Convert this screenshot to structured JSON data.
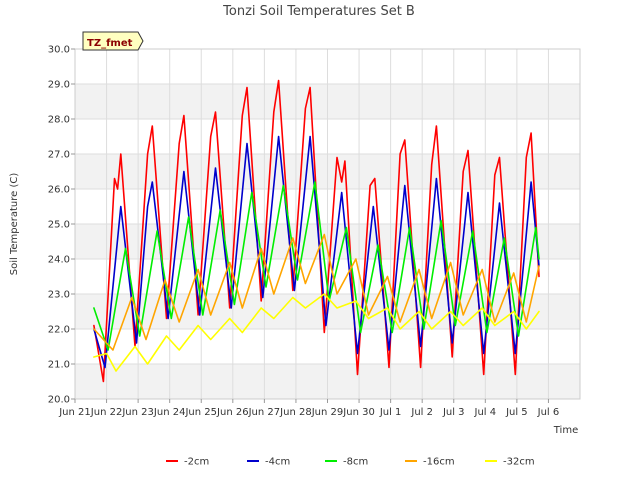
{
  "chart_data": {
    "type": "line",
    "title": "Tonzi Soil Temperatures Set B",
    "xlabel": "Time",
    "ylabel": "Soil Temperature (C)",
    "badge": "TZ_fmet",
    "x_ticks": [
      "Jun 21",
      "Jun 22",
      "Jun 23",
      "Jun 24",
      "Jun 25",
      "Jun 26",
      "Jun 27",
      "Jun 28",
      "Jun 29",
      "Jun 30",
      "Jul 1",
      "Jul 2",
      "Jul 3",
      "Jul 4",
      "Jul 5",
      "Jul 6"
    ],
    "y_ticks": [
      "20.0",
      "21.0",
      "22.0",
      "23.0",
      "24.0",
      "25.0",
      "26.0",
      "27.0",
      "28.0",
      "29.0",
      "30.0"
    ],
    "ylim": [
      20,
      30
    ],
    "xlim_days": [
      0,
      16
    ],
    "grid": true,
    "legend_position": "bottom",
    "series": [
      {
        "name": "-2cm",
        "color": "#ff0000",
        "points": [
          {
            "x": 0.6,
            "y": 22.1
          },
          {
            "x": 0.9,
            "y": 20.5
          },
          {
            "x": 1.25,
            "y": 26.3
          },
          {
            "x": 1.35,
            "y": 26.0
          },
          {
            "x": 1.45,
            "y": 27.0
          },
          {
            "x": 1.9,
            "y": 21.5
          },
          {
            "x": 2.3,
            "y": 27.0
          },
          {
            "x": 2.45,
            "y": 27.8
          },
          {
            "x": 2.9,
            "y": 22.3
          },
          {
            "x": 3.3,
            "y": 27.3
          },
          {
            "x": 3.45,
            "y": 28.1
          },
          {
            "x": 3.9,
            "y": 22.4
          },
          {
            "x": 4.3,
            "y": 27.5
          },
          {
            "x": 4.45,
            "y": 28.2
          },
          {
            "x": 4.9,
            "y": 22.6
          },
          {
            "x": 5.3,
            "y": 28.1
          },
          {
            "x": 5.45,
            "y": 28.9
          },
          {
            "x": 5.9,
            "y": 22.8
          },
          {
            "x": 6.3,
            "y": 28.2
          },
          {
            "x": 6.45,
            "y": 29.1
          },
          {
            "x": 6.9,
            "y": 23.1
          },
          {
            "x": 7.3,
            "y": 28.3
          },
          {
            "x": 7.45,
            "y": 28.9
          },
          {
            "x": 7.9,
            "y": 21.9
          },
          {
            "x": 8.3,
            "y": 26.9
          },
          {
            "x": 8.45,
            "y": 26.2
          },
          {
            "x": 8.55,
            "y": 26.8
          },
          {
            "x": 8.95,
            "y": 20.7
          },
          {
            "x": 9.35,
            "y": 26.1
          },
          {
            "x": 9.5,
            "y": 26.3
          },
          {
            "x": 9.95,
            "y": 20.9
          },
          {
            "x": 10.3,
            "y": 27.0
          },
          {
            "x": 10.45,
            "y": 27.4
          },
          {
            "x": 10.95,
            "y": 20.9
          },
          {
            "x": 11.3,
            "y": 26.7
          },
          {
            "x": 11.45,
            "y": 27.8
          },
          {
            "x": 11.95,
            "y": 21.2
          },
          {
            "x": 12.3,
            "y": 26.5
          },
          {
            "x": 12.45,
            "y": 27.1
          },
          {
            "x": 12.95,
            "y": 20.7
          },
          {
            "x": 13.3,
            "y": 26.4
          },
          {
            "x": 13.45,
            "y": 26.9
          },
          {
            "x": 13.95,
            "y": 20.7
          },
          {
            "x": 14.3,
            "y": 26.9
          },
          {
            "x": 14.45,
            "y": 27.6
          },
          {
            "x": 14.7,
            "y": 23.5
          }
        ]
      },
      {
        "name": "-4cm",
        "color": "#0000cc",
        "points": [
          {
            "x": 0.6,
            "y": 22.0
          },
          {
            "x": 0.95,
            "y": 20.9
          },
          {
            "x": 1.45,
            "y": 25.5
          },
          {
            "x": 1.95,
            "y": 21.6
          },
          {
            "x": 2.3,
            "y": 25.5
          },
          {
            "x": 2.45,
            "y": 26.2
          },
          {
            "x": 2.95,
            "y": 22.3
          },
          {
            "x": 3.45,
            "y": 26.5
          },
          {
            "x": 3.95,
            "y": 22.4
          },
          {
            "x": 4.45,
            "y": 26.6
          },
          {
            "x": 4.95,
            "y": 22.6
          },
          {
            "x": 5.45,
            "y": 27.3
          },
          {
            "x": 5.95,
            "y": 22.9
          },
          {
            "x": 6.45,
            "y": 27.5
          },
          {
            "x": 6.95,
            "y": 23.1
          },
          {
            "x": 7.45,
            "y": 27.5
          },
          {
            "x": 7.95,
            "y": 22.1
          },
          {
            "x": 8.45,
            "y": 25.9
          },
          {
            "x": 8.95,
            "y": 21.3
          },
          {
            "x": 9.45,
            "y": 25.5
          },
          {
            "x": 9.95,
            "y": 21.4
          },
          {
            "x": 10.45,
            "y": 26.1
          },
          {
            "x": 10.95,
            "y": 21.5
          },
          {
            "x": 11.45,
            "y": 26.3
          },
          {
            "x": 11.95,
            "y": 21.6
          },
          {
            "x": 12.45,
            "y": 25.9
          },
          {
            "x": 12.95,
            "y": 21.3
          },
          {
            "x": 13.45,
            "y": 25.6
          },
          {
            "x": 13.95,
            "y": 21.3
          },
          {
            "x": 14.45,
            "y": 26.2
          },
          {
            "x": 14.7,
            "y": 23.8
          }
        ]
      },
      {
        "name": "-8cm",
        "color": "#00ee00",
        "points": [
          {
            "x": 0.6,
            "y": 22.6
          },
          {
            "x": 1.05,
            "y": 21.4
          },
          {
            "x": 1.6,
            "y": 24.3
          },
          {
            "x": 2.05,
            "y": 21.8
          },
          {
            "x": 2.6,
            "y": 24.8
          },
          {
            "x": 3.05,
            "y": 22.3
          },
          {
            "x": 3.6,
            "y": 25.2
          },
          {
            "x": 4.05,
            "y": 22.4
          },
          {
            "x": 4.6,
            "y": 25.4
          },
          {
            "x": 5.05,
            "y": 22.7
          },
          {
            "x": 5.6,
            "y": 25.9
          },
          {
            "x": 6.05,
            "y": 23.2
          },
          {
            "x": 6.6,
            "y": 26.1
          },
          {
            "x": 7.05,
            "y": 23.4
          },
          {
            "x": 7.6,
            "y": 26.2
          },
          {
            "x": 8.05,
            "y": 22.8
          },
          {
            "x": 8.6,
            "y": 24.9
          },
          {
            "x": 9.05,
            "y": 21.9
          },
          {
            "x": 9.6,
            "y": 24.4
          },
          {
            "x": 10.05,
            "y": 21.9
          },
          {
            "x": 10.6,
            "y": 24.9
          },
          {
            "x": 11.05,
            "y": 22.0
          },
          {
            "x": 11.6,
            "y": 25.1
          },
          {
            "x": 12.05,
            "y": 22.1
          },
          {
            "x": 12.6,
            "y": 24.8
          },
          {
            "x": 13.05,
            "y": 21.9
          },
          {
            "x": 13.6,
            "y": 24.6
          },
          {
            "x": 14.05,
            "y": 21.8
          },
          {
            "x": 14.6,
            "y": 24.9
          },
          {
            "x": 14.7,
            "y": 24.0
          }
        ]
      },
      {
        "name": "-16cm",
        "color": "#ffa500",
        "points": [
          {
            "x": 0.6,
            "y": 22.0
          },
          {
            "x": 1.2,
            "y": 21.4
          },
          {
            "x": 1.8,
            "y": 22.9
          },
          {
            "x": 2.25,
            "y": 21.7
          },
          {
            "x": 2.85,
            "y": 23.4
          },
          {
            "x": 3.3,
            "y": 22.2
          },
          {
            "x": 3.9,
            "y": 23.7
          },
          {
            "x": 4.3,
            "y": 22.4
          },
          {
            "x": 4.9,
            "y": 23.9
          },
          {
            "x": 5.3,
            "y": 22.6
          },
          {
            "x": 5.9,
            "y": 24.3
          },
          {
            "x": 6.3,
            "y": 23.0
          },
          {
            "x": 6.9,
            "y": 24.6
          },
          {
            "x": 7.3,
            "y": 23.3
          },
          {
            "x": 7.9,
            "y": 24.7
          },
          {
            "x": 8.3,
            "y": 23.0
          },
          {
            "x": 8.9,
            "y": 24.0
          },
          {
            "x": 9.3,
            "y": 22.4
          },
          {
            "x": 9.9,
            "y": 23.5
          },
          {
            "x": 10.3,
            "y": 22.2
          },
          {
            "x": 10.9,
            "y": 23.7
          },
          {
            "x": 11.3,
            "y": 22.3
          },
          {
            "x": 11.9,
            "y": 23.9
          },
          {
            "x": 12.3,
            "y": 22.4
          },
          {
            "x": 12.9,
            "y": 23.7
          },
          {
            "x": 13.3,
            "y": 22.2
          },
          {
            "x": 13.9,
            "y": 23.6
          },
          {
            "x": 14.3,
            "y": 22.2
          },
          {
            "x": 14.7,
            "y": 23.8
          }
        ]
      },
      {
        "name": "-32cm",
        "color": "#ffff00",
        "points": [
          {
            "x": 0.6,
            "y": 21.2
          },
          {
            "x": 1.0,
            "y": 21.3
          },
          {
            "x": 1.3,
            "y": 20.8
          },
          {
            "x": 1.9,
            "y": 21.5
          },
          {
            "x": 2.3,
            "y": 21.0
          },
          {
            "x": 2.9,
            "y": 21.8
          },
          {
            "x": 3.3,
            "y": 21.4
          },
          {
            "x": 3.9,
            "y": 22.1
          },
          {
            "x": 4.3,
            "y": 21.7
          },
          {
            "x": 4.9,
            "y": 22.3
          },
          {
            "x": 5.3,
            "y": 21.9
          },
          {
            "x": 5.9,
            "y": 22.6
          },
          {
            "x": 6.3,
            "y": 22.3
          },
          {
            "x": 6.9,
            "y": 22.9
          },
          {
            "x": 7.3,
            "y": 22.6
          },
          {
            "x": 7.9,
            "y": 23.0
          },
          {
            "x": 8.3,
            "y": 22.6
          },
          {
            "x": 8.9,
            "y": 22.8
          },
          {
            "x": 9.3,
            "y": 22.3
          },
          {
            "x": 9.9,
            "y": 22.6
          },
          {
            "x": 10.3,
            "y": 22.0
          },
          {
            "x": 10.9,
            "y": 22.5
          },
          {
            "x": 11.3,
            "y": 22.0
          },
          {
            "x": 11.9,
            "y": 22.5
          },
          {
            "x": 12.3,
            "y": 22.1
          },
          {
            "x": 12.9,
            "y": 22.6
          },
          {
            "x": 13.3,
            "y": 22.1
          },
          {
            "x": 13.9,
            "y": 22.5
          },
          {
            "x": 14.3,
            "y": 22.0
          },
          {
            "x": 14.7,
            "y": 22.5
          }
        ]
      }
    ]
  }
}
